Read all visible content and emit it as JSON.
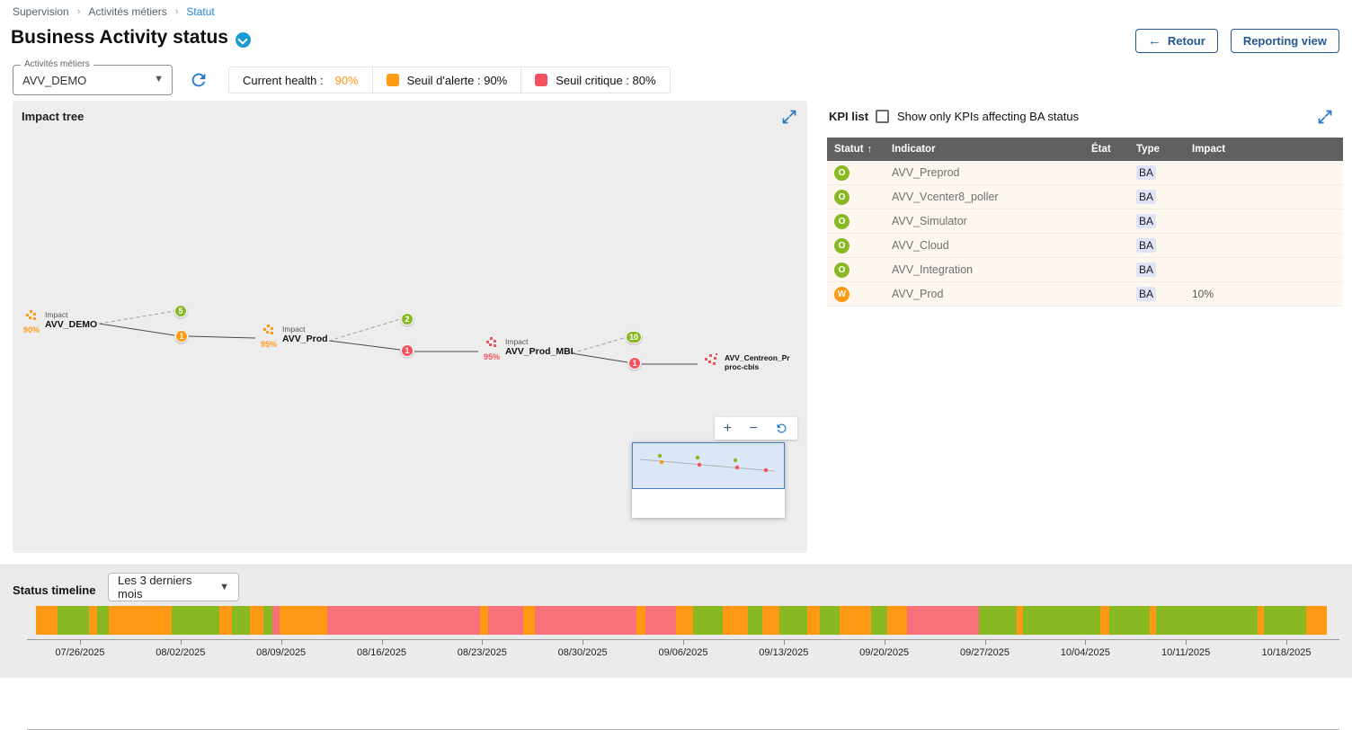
{
  "breadcrumb": {
    "items": [
      "Supervision",
      "Activités métiers",
      "Statut"
    ]
  },
  "header": {
    "title": "Business Activity status",
    "back_button": "Retour",
    "reporting_button": "Reporting view"
  },
  "toolbar": {
    "ba_select_label": "Activités métiers",
    "ba_select_value": "AVV_DEMO",
    "legend": {
      "current_health_label": "Current health :",
      "current_health_value": "90%",
      "alert_label": "Seuil d'alerte : 90%",
      "critical_label": "Seuil critique : 80%"
    }
  },
  "impact_tree": {
    "title": "Impact tree",
    "nodes": [
      {
        "type_label": "Impact",
        "impact": "90%",
        "name": "AVV_DEMO"
      },
      {
        "type_label": "Impact",
        "impact": "95%",
        "name": "AVV_Prod"
      },
      {
        "type_label": "Impact",
        "impact": "95%",
        "name": "AVV_Prod_MBI"
      },
      {
        "name_line1": "AVV_Centreon_Pr",
        "name_line2": "proc-cbis"
      }
    ],
    "badges": {
      "demo_ok": "5",
      "demo_warning": "1",
      "prod_ok": "2",
      "prod_critical": "1",
      "mbi_ok": "10",
      "mbi_critical": "1"
    },
    "zoom": {
      "zoom_in": "+",
      "zoom_out": "−"
    }
  },
  "kpi_list": {
    "title": "KPI list",
    "filter_label": "Show only KPIs affecting BA status",
    "columns": {
      "statut": "Statut",
      "indicator": "Indicator",
      "etat": "État",
      "type": "Type",
      "impact": "Impact"
    },
    "sort_arrow": "↑",
    "rows": [
      {
        "status": "O",
        "indicator": "AVV_Preprod",
        "etat": "",
        "type": "BA",
        "impact": ""
      },
      {
        "status": "O",
        "indicator": "AVV_Vcenter8_poller",
        "etat": "",
        "type": "BA",
        "impact": ""
      },
      {
        "status": "O",
        "indicator": "AVV_Simulator",
        "etat": "",
        "type": "BA",
        "impact": ""
      },
      {
        "status": "O",
        "indicator": "AVV_Cloud",
        "etat": "",
        "type": "BA",
        "impact": ""
      },
      {
        "status": "O",
        "indicator": "AVV_Integration",
        "etat": "",
        "type": "BA",
        "impact": ""
      },
      {
        "status": "W",
        "indicator": "AVV_Prod",
        "etat": "",
        "type": "BA",
        "impact": "10%"
      }
    ]
  },
  "timeline": {
    "title": "Status timeline",
    "period_value": "Les 3 derniers mois",
    "dates": [
      "07/26/2025",
      "08/02/2025",
      "08/09/2025",
      "08/16/2025",
      "08/23/2025",
      "08/30/2025",
      "09/06/2025",
      "09/13/2025",
      "09/20/2025",
      "09/27/2025",
      "10/04/2025",
      "10/11/2025",
      "10/18/2025"
    ],
    "colors": {
      "g": "#88b922",
      "o": "#ff9913",
      "r": "#f7707a"
    },
    "segments": [
      {
        "c": "o",
        "w": 1.6
      },
      {
        "c": "g",
        "w": 2.4
      },
      {
        "c": "o",
        "w": 0.6
      },
      {
        "c": "g",
        "w": 0.9
      },
      {
        "c": "o",
        "w": 4.7
      },
      {
        "c": "g",
        "w": 3.6
      },
      {
        "c": "o",
        "w": 0.9
      },
      {
        "c": "g",
        "w": 1.4
      },
      {
        "c": "o",
        "w": 1.0
      },
      {
        "c": "g",
        "w": 0.7
      },
      {
        "c": "r",
        "w": 0.5
      },
      {
        "c": "o",
        "w": 3.6
      },
      {
        "c": "r",
        "w": 11.5
      },
      {
        "c": "o",
        "w": 0.6
      },
      {
        "c": "r",
        "w": 2.6
      },
      {
        "c": "o",
        "w": 0.9
      },
      {
        "c": "r",
        "w": 7.6
      },
      {
        "c": "o",
        "w": 0.7
      },
      {
        "c": "r",
        "w": 2.3
      },
      {
        "c": "o",
        "w": 1.3
      },
      {
        "c": "g",
        "w": 2.2
      },
      {
        "c": "o",
        "w": 1.9
      },
      {
        "c": "g",
        "w": 1.1
      },
      {
        "c": "o",
        "w": 1.3
      },
      {
        "c": "g",
        "w": 2.1
      },
      {
        "c": "o",
        "w": 0.9
      },
      {
        "c": "g",
        "w": 1.5
      },
      {
        "c": "o",
        "w": 2.4
      },
      {
        "c": "g",
        "w": 1.2
      },
      {
        "c": "o",
        "w": 1.5
      },
      {
        "c": "r",
        "w": 5.4
      },
      {
        "c": "g",
        "w": 2.8
      },
      {
        "c": "o",
        "w": 0.5
      },
      {
        "c": "g",
        "w": 5.8
      },
      {
        "c": "o",
        "w": 0.7
      },
      {
        "c": "g",
        "w": 3.0
      },
      {
        "c": "o",
        "w": 0.5
      },
      {
        "c": "g",
        "w": 7.6
      },
      {
        "c": "o",
        "w": 0.5
      },
      {
        "c": "g",
        "w": 3.2
      },
      {
        "c": "o",
        "w": 1.5
      }
    ]
  },
  "colors": {
    "ok_green": "#88b922",
    "warning_orange": "#ff9913",
    "critical_red": "#f4515c",
    "timeline_red": "#f7707a",
    "accent_blue": "#255891",
    "link_blue": "#2086d4",
    "table_header_gray": "#615f5f"
  }
}
